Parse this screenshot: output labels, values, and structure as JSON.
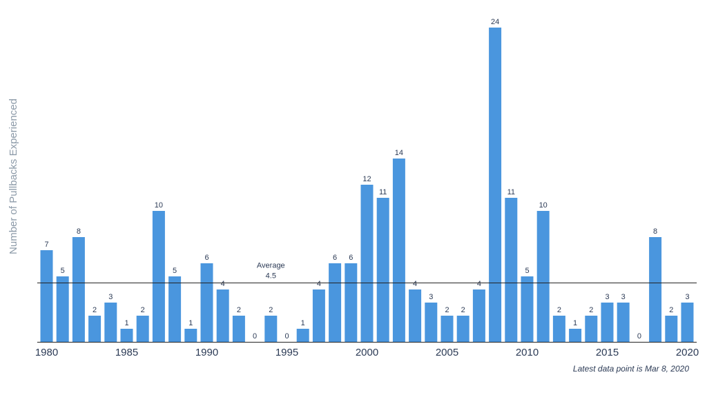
{
  "chart_data": {
    "type": "bar",
    "ylabel": "Number of Pullbacks Experienced",
    "xlabel": "",
    "title": "",
    "categories": [
      1980,
      1981,
      1982,
      1983,
      1984,
      1985,
      1986,
      1987,
      1988,
      1989,
      1990,
      1991,
      1992,
      1993,
      1994,
      1995,
      1996,
      1997,
      1998,
      1999,
      2000,
      2001,
      2002,
      2003,
      2004,
      2005,
      2006,
      2007,
      2008,
      2009,
      2010,
      2011,
      2012,
      2013,
      2014,
      2015,
      2016,
      2017,
      2018,
      2019,
      2020
    ],
    "values": [
      7,
      5,
      8,
      2,
      3,
      1,
      2,
      10,
      5,
      1,
      6,
      4,
      2,
      0,
      2,
      0,
      1,
      4,
      6,
      6,
      12,
      11,
      14,
      4,
      3,
      2,
      2,
      4,
      24,
      11,
      5,
      10,
      2,
      1,
      2,
      3,
      3,
      0,
      8,
      2,
      3
    ],
    "x_ticks": [
      "1980",
      "1985",
      "1990",
      "1995",
      "2000",
      "2005",
      "2010",
      "2015",
      "2020"
    ],
    "ylim": [
      0,
      24
    ],
    "average": {
      "value": 4.5,
      "label": "Average",
      "value_label": "4.5"
    },
    "bar_color": "#4a96de",
    "grid": false,
    "legend": "none",
    "footnote": "Latest data point is Mar 8, 2020"
  }
}
